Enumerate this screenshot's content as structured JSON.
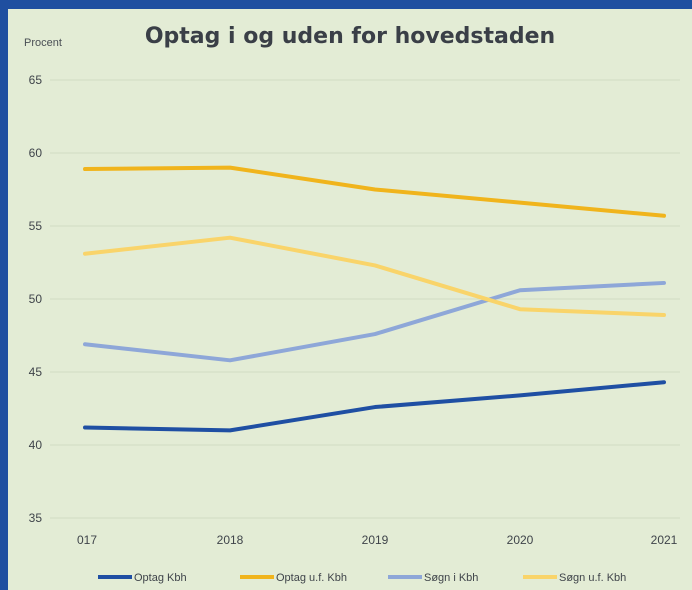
{
  "chart_data": {
    "type": "line",
    "title": "Optag i og uden for hovedstaden",
    "ylabel": "Procent",
    "xlabel": "",
    "categories": [
      "017",
      "2018",
      "2019",
      "2020",
      "2021"
    ],
    "ylim": [
      35,
      65
    ],
    "yticks": [
      35,
      40,
      45,
      50,
      55,
      60,
      65
    ],
    "grid": true,
    "legend": "bottom",
    "series": [
      {
        "name": "Optag Kbh",
        "color": "#1f4fa3",
        "values": [
          41.2,
          41.0,
          42.6,
          43.4,
          44.3
        ]
      },
      {
        "name": "Optag u.f. Kbh",
        "color": "#f0b41c",
        "values": [
          58.9,
          59.0,
          57.5,
          56.6,
          55.7
        ]
      },
      {
        "name": "Søgn i Kbh",
        "color": "#8ea7d8",
        "values": [
          46.9,
          45.8,
          47.6,
          50.6,
          51.1
        ]
      },
      {
        "name": "Søgn u.f. Kbh",
        "color": "#f9d46a",
        "values": [
          53.1,
          54.2,
          52.3,
          49.3,
          48.9
        ]
      }
    ]
  }
}
